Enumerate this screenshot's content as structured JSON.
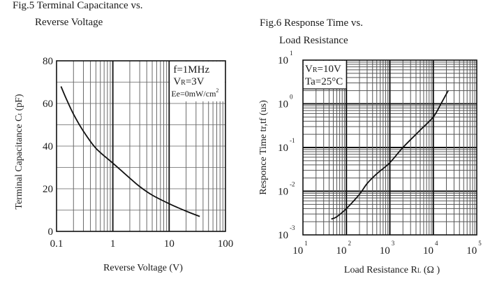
{
  "chart_data": [
    {
      "id": "fig5",
      "type": "line",
      "title_line1": "Fig.5 Terminal Capacitance vs.",
      "title_line2": "Reverse Voltage",
      "xlabel": "Reverse Voltage (V)",
      "ylabel_main": "Terminal Capacitance C",
      "ylabel_sub": "t",
      "ylabel_unit": " (pF)",
      "xscale": "log",
      "yscale": "linear",
      "xlim": [
        0.1,
        100
      ],
      "ylim": [
        0,
        80
      ],
      "xticks": [
        {
          "value": 0.1,
          "label": "0.1"
        },
        {
          "value": 1,
          "label": "1"
        },
        {
          "value": 10,
          "label": "10"
        },
        {
          "value": 100,
          "label": "100"
        }
      ],
      "yticks": [
        {
          "value": 0,
          "label": "0"
        },
        {
          "value": 20,
          "label": "20"
        },
        {
          "value": 40,
          "label": "40"
        },
        {
          "value": 60,
          "label": "60"
        },
        {
          "value": 80,
          "label": "80"
        }
      ],
      "ygrid_step": 10,
      "grid": true,
      "legend_position": "top-right",
      "annotations": [
        {
          "text": "f=1MHz"
        },
        {
          "main": "V",
          "sub": "R",
          "rest": "=3V"
        },
        {
          "main": "Ee=0mW/cm",
          "sup": "2"
        }
      ],
      "series": [
        {
          "name": "Ct",
          "x": [
            0.12,
            0.15,
            0.2,
            0.3,
            0.5,
            1,
            2,
            3,
            5,
            10,
            20,
            35
          ],
          "y": [
            68,
            62,
            55,
            47,
            39,
            32,
            25,
            21,
            17,
            13,
            9.5,
            7
          ]
        }
      ]
    },
    {
      "id": "fig6",
      "type": "line",
      "title_line1": "Fig.6 Response Time vs.",
      "title_line2": "Load Resistance",
      "xlabel_main": "Load Resistance R",
      "xlabel_sub": "L",
      "xlabel_unit": " (Ω )",
      "ylabel": "Responce Time tr,tf (us)",
      "xscale": "log",
      "yscale": "log",
      "xlim": [
        10,
        100000
      ],
      "ylim": [
        0.001,
        10
      ],
      "xticks": [
        {
          "value": 10,
          "base": "10",
          "exp": "1"
        },
        {
          "value": 100,
          "base": "10",
          "exp": "2"
        },
        {
          "value": 1000,
          "base": "10",
          "exp": "3"
        },
        {
          "value": 10000,
          "base": "10",
          "exp": "4"
        },
        {
          "value": 100000,
          "base": "10",
          "exp": "5"
        }
      ],
      "yticks": [
        {
          "value": 10,
          "base": "10",
          "exp": "1"
        },
        {
          "value": 1,
          "base": "10",
          "exp": "0"
        },
        {
          "value": 0.1,
          "base": "10",
          "exp": "-1"
        },
        {
          "value": 0.01,
          "base": "10",
          "exp": "-2"
        },
        {
          "value": 0.001,
          "base": "10",
          "exp": "-3"
        }
      ],
      "grid": true,
      "legend_position": "top-left",
      "annotations": [
        {
          "main": "V",
          "sub": "R",
          "rest": "=10V"
        },
        {
          "text": "Ta=25°C"
        }
      ],
      "series": [
        {
          "name": "tr,tf",
          "x": [
            45,
            60,
            100,
            200,
            300,
            500,
            1000,
            2000,
            5000,
            10000,
            15000,
            22000
          ],
          "y": [
            0.0023,
            0.0026,
            0.004,
            0.0085,
            0.015,
            0.025,
            0.045,
            0.1,
            0.25,
            0.5,
            1.0,
            2.0
          ]
        }
      ]
    }
  ]
}
